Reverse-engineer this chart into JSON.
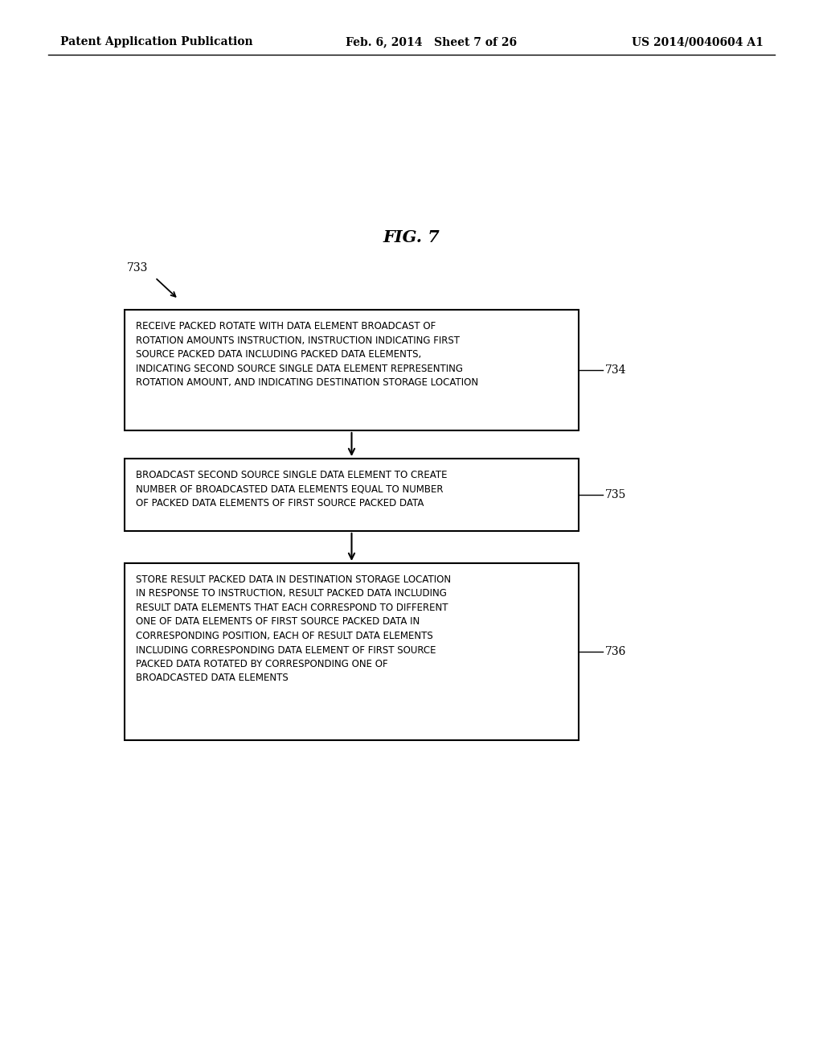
{
  "background_color": "#ffffff",
  "header_left": "Patent Application Publication",
  "header_mid": "Feb. 6, 2014   Sheet 7 of 26",
  "header_right": "US 2014/0040604 A1",
  "fig_label": "FIG. 7",
  "boxes": [
    {
      "id": "734",
      "label": "734",
      "text": "RECEIVE PACKED ROTATE WITH DATA ELEMENT BROADCAST OF\nROTATION AMOUNTS INSTRUCTION, INSTRUCTION INDICATING FIRST\nSOURCE PACKED DATA INCLUDING PACKED DATA ELEMENTS,\nINDICATING SECOND SOURCE SINGLE DATA ELEMENT REPRESENTING\nROTATION AMOUNT, AND INDICATING DESTINATION STORAGE LOCATION"
    },
    {
      "id": "735",
      "label": "735",
      "text": "BROADCAST SECOND SOURCE SINGLE DATA ELEMENT TO CREATE\nNUMBER OF BROADCASTED DATA ELEMENTS EQUAL TO NUMBER\nOF PACKED DATA ELEMENTS OF FIRST SOURCE PACKED DATA"
    },
    {
      "id": "736",
      "label": "736",
      "text": "STORE RESULT PACKED DATA IN DESTINATION STORAGE LOCATION\nIN RESPONSE TO INSTRUCTION, RESULT PACKED DATA INCLUDING\nRESULT DATA ELEMENTS THAT EACH CORRESPOND TO DIFFERENT\nONE OF DATA ELEMENTS OF FIRST SOURCE PACKED DATA IN\nCORRESPONDING POSITION, EACH OF RESULT DATA ELEMENTS\nINCLUDING CORRESPONDING DATA ELEMENT OF FIRST SOURCE\nPACKED DATA ROTATED BY CORRESPONDING ONE OF\nBROADCASTED DATA ELEMENTS"
    }
  ],
  "text_fontsize": 8.5,
  "label_fontsize": 10,
  "header_fontsize": 10,
  "fig_fontsize": 15
}
